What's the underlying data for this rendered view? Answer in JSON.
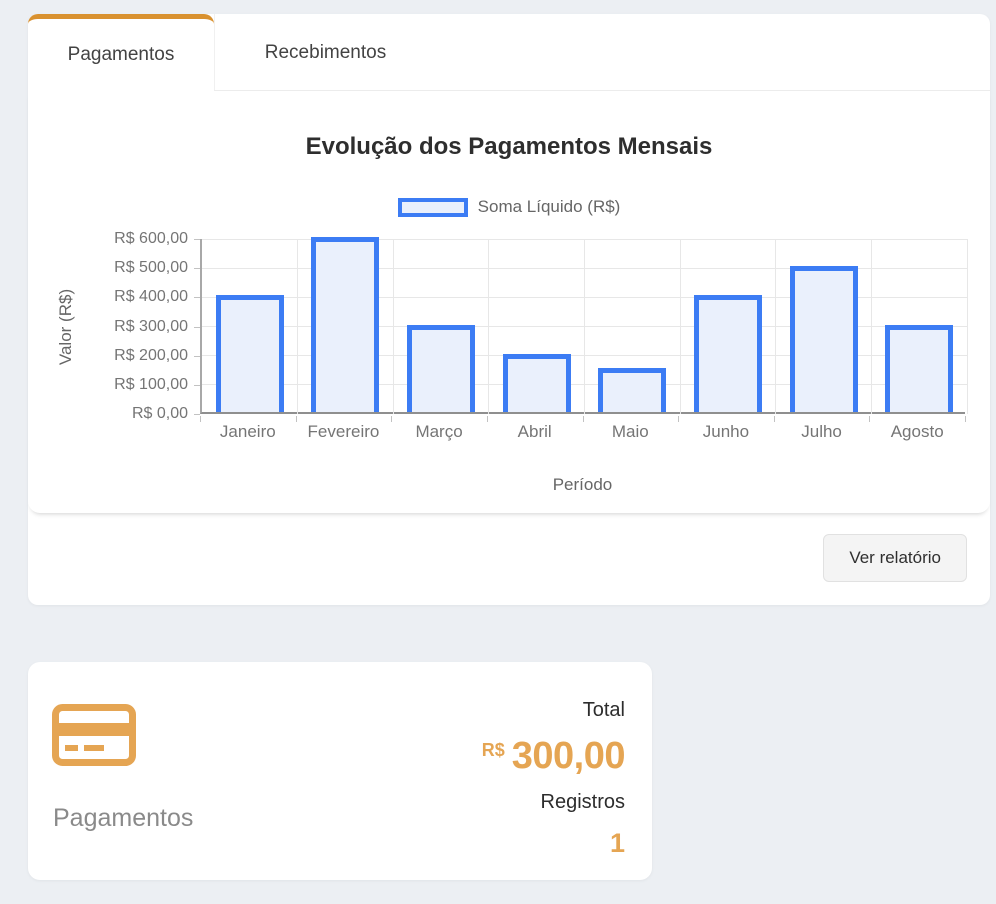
{
  "accent": {
    "orange": "#E5A553",
    "tab_indicator": "#D9912F",
    "bar_border": "#3C7CF4",
    "bar_fill": "#EAF0FC"
  },
  "tabs": [
    {
      "label": "Pagamentos",
      "active": true
    },
    {
      "label": "Recebimentos",
      "active": false
    }
  ],
  "chart_data": {
    "type": "bar",
    "title": "Evolução dos Pagamentos Mensais",
    "categories": [
      "Janeiro",
      "Fevereiro",
      "Março",
      "Abril",
      "Maio",
      "Junho",
      "Julho",
      "Agosto"
    ],
    "series": [
      {
        "name": "Soma Líquido (R$)",
        "values": [
          400,
          600,
          300,
          200,
          150,
          400,
          500,
          300
        ]
      }
    ],
    "xlabel": "Período",
    "ylabel": "Valor (R$)",
    "ylim": [
      0,
      600
    ],
    "y_ticks": [
      0,
      100,
      200,
      300,
      400,
      500,
      600
    ],
    "y_tick_labels": [
      "R$ 0,00",
      "R$ 100,00",
      "R$ 200,00",
      "R$ 300,00",
      "R$ 400,00",
      "R$ 500,00",
      "R$ 600,00"
    ],
    "grid": true,
    "legend_position": "top"
  },
  "footer": {
    "report_button": "Ver relatório"
  },
  "summary_card": {
    "label": "Pagamentos",
    "total_label": "Total",
    "currency": "R$",
    "total_value": "300,00",
    "registros_label": "Registros",
    "registros_value": "1"
  }
}
